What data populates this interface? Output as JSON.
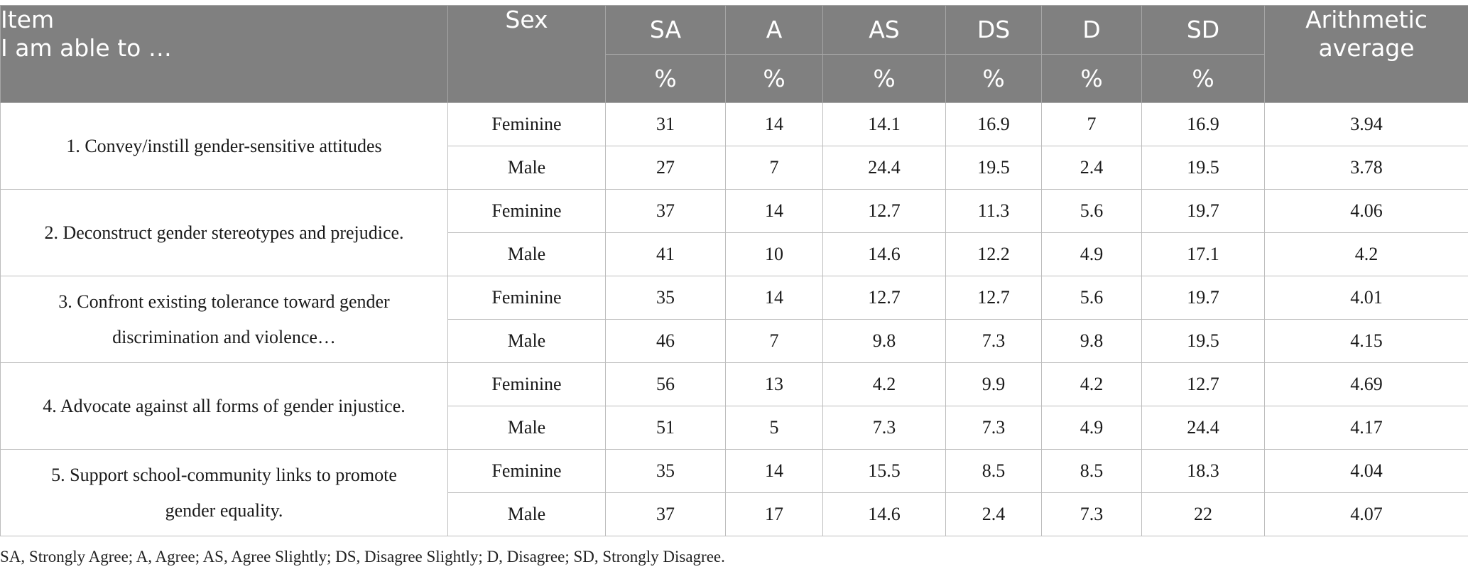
{
  "header": {
    "item_line1": "Item",
    "item_line2": "I am able to …",
    "sex": "Sex",
    "columns": [
      "SA",
      "A",
      "AS",
      "DS",
      "D",
      "SD"
    ],
    "percent": "%",
    "average_line1": "Arithmetic",
    "average_line2": "average"
  },
  "items": [
    {
      "text_lines": [
        "1. Convey/instill gender-sensitive attitudes"
      ],
      "rows": [
        {
          "sex": "Feminine",
          "values": [
            "31",
            "14",
            "14.1",
            "16.9",
            "7",
            "16.9"
          ],
          "average": "3.94"
        },
        {
          "sex": "Male",
          "values": [
            "27",
            "7",
            "24.4",
            "19.5",
            "2.4",
            "19.5"
          ],
          "average": "3.78"
        }
      ]
    },
    {
      "text_lines": [
        "2. Deconstruct gender stereotypes and prejudice."
      ],
      "rows": [
        {
          "sex": "Feminine",
          "values": [
            "37",
            "14",
            "12.7",
            "11.3",
            "5.6",
            "19.7"
          ],
          "average": "4.06"
        },
        {
          "sex": "Male",
          "values": [
            "41",
            "10",
            "14.6",
            "12.2",
            "4.9",
            "17.1"
          ],
          "average": "4.2"
        }
      ]
    },
    {
      "text_lines": [
        "3. Confront existing tolerance toward gender",
        "discrimination and violence…"
      ],
      "rows": [
        {
          "sex": "Feminine",
          "values": [
            "35",
            "14",
            "12.7",
            "12.7",
            "5.6",
            "19.7"
          ],
          "average": "4.01"
        },
        {
          "sex": "Male",
          "values": [
            "46",
            "7",
            "9.8",
            "7.3",
            "9.8",
            "19.5"
          ],
          "average": "4.15"
        }
      ]
    },
    {
      "text_lines": [
        "4. Advocate against all forms of gender injustice."
      ],
      "rows": [
        {
          "sex": "Feminine",
          "values": [
            "56",
            "13",
            "4.2",
            "9.9",
            "4.2",
            "12.7"
          ],
          "average": "4.69"
        },
        {
          "sex": "Male",
          "values": [
            "51",
            "5",
            "7.3",
            "7.3",
            "4.9",
            "24.4"
          ],
          "average": "4.17"
        }
      ]
    },
    {
      "text_lines": [
        "5. Support school-community links to promote",
        "gender equality."
      ],
      "rows": [
        {
          "sex": "Feminine",
          "values": [
            "35",
            "14",
            "15.5",
            "8.5",
            "8.5",
            "18.3"
          ],
          "average": "4.04"
        },
        {
          "sex": "Male",
          "values": [
            "37",
            "17",
            "14.6",
            "2.4",
            "7.3",
            "22"
          ],
          "average": "4.07"
        }
      ]
    }
  ],
  "footnote": "SA, Strongly Agree; A, Agree; AS, Agree Slightly; DS, Disagree Slightly; D, Disagree; SD, Strongly Disagree."
}
